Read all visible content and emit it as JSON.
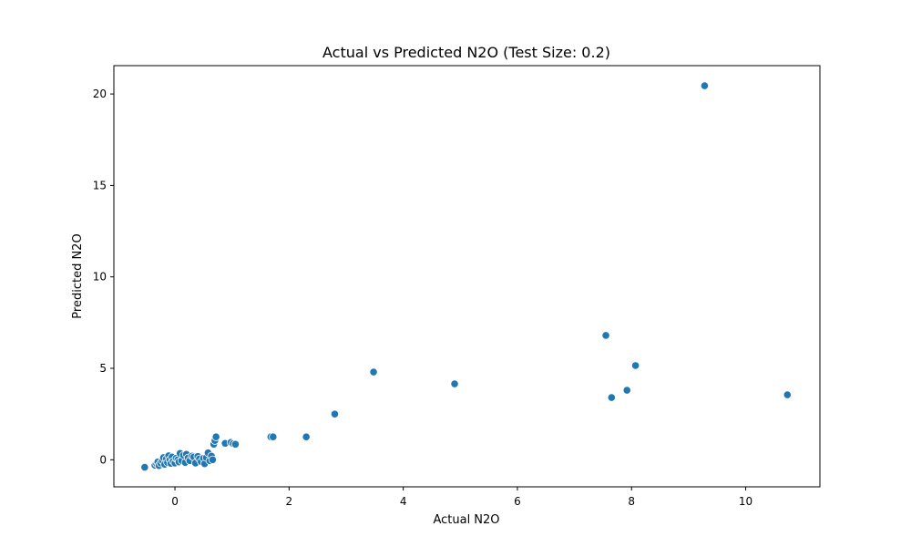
{
  "chart_data": {
    "type": "scatter",
    "title": "Actual vs Predicted N2O (Test Size: 0.2)",
    "xlabel": "Actual N2O",
    "ylabel": "Predicted N2O",
    "xlim": [
      -1.07,
      11.3
    ],
    "ylim": [
      -1.48,
      21.55
    ],
    "xticks": [
      0,
      2,
      4,
      6,
      8,
      10
    ],
    "yticks": [
      0,
      5,
      10,
      15,
      20
    ],
    "xtick_labels": [
      "0",
      "2",
      "4",
      "6",
      "8",
      "10"
    ],
    "ytick_labels": [
      "0",
      "5",
      "10",
      "15",
      "20"
    ],
    "grid": false,
    "color": "#1f77b4",
    "series": [
      {
        "points": [
          [
            -0.53,
            -0.41
          ],
          [
            -0.35,
            -0.3
          ],
          [
            -0.32,
            -0.22
          ],
          [
            -0.3,
            -0.12
          ],
          [
            -0.28,
            -0.32
          ],
          [
            -0.25,
            -0.18
          ],
          [
            -0.22,
            -0.05
          ],
          [
            -0.2,
            0.12
          ],
          [
            -0.18,
            -0.25
          ],
          [
            -0.15,
            0.05
          ],
          [
            -0.13,
            -0.15
          ],
          [
            -0.11,
            0.22
          ],
          [
            -0.09,
            0.0
          ],
          [
            -0.07,
            -0.2
          ],
          [
            -0.05,
            0.15
          ],
          [
            -0.03,
            -0.08
          ],
          [
            0.0,
            -0.18
          ],
          [
            0.02,
            0.08
          ],
          [
            0.05,
            0.0
          ],
          [
            0.07,
            -0.12
          ],
          [
            0.09,
            0.35
          ],
          [
            0.12,
            -0.05
          ],
          [
            0.15,
            0.25
          ],
          [
            0.18,
            -0.15
          ],
          [
            0.2,
            0.3
          ],
          [
            0.23,
            0.1
          ],
          [
            0.26,
            -0.05
          ],
          [
            0.3,
            0.2
          ],
          [
            0.33,
            0.15
          ],
          [
            0.36,
            -0.18
          ],
          [
            0.4,
            0.18
          ],
          [
            0.43,
            0.05
          ],
          [
            0.46,
            -0.1
          ],
          [
            0.5,
            0.08
          ],
          [
            0.52,
            -0.22
          ],
          [
            0.55,
            0.12
          ],
          [
            0.58,
            0.38
          ],
          [
            0.61,
            -0.05
          ],
          [
            0.64,
            0.2
          ],
          [
            0.66,
            0.0
          ],
          [
            0.68,
            0.85
          ],
          [
            0.7,
            1.05
          ],
          [
            0.72,
            1.25
          ],
          [
            0.88,
            0.9
          ],
          [
            0.98,
            0.95
          ],
          [
            1.02,
            0.88
          ],
          [
            1.06,
            0.85
          ],
          [
            1.68,
            1.25
          ],
          [
            1.72,
            1.25
          ],
          [
            2.3,
            1.25
          ],
          [
            2.8,
            2.5
          ],
          [
            3.48,
            4.8
          ],
          [
            4.9,
            4.15
          ],
          [
            7.55,
            6.8
          ],
          [
            7.65,
            3.4
          ],
          [
            7.92,
            3.8
          ],
          [
            8.07,
            5.15
          ],
          [
            9.28,
            20.45
          ],
          [
            10.73,
            3.55
          ]
        ]
      }
    ]
  }
}
